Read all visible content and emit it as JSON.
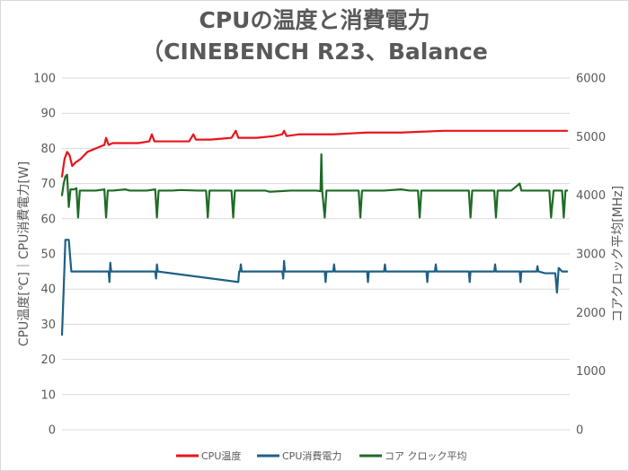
{
  "chart_data": {
    "type": "line",
    "title_lines": [
      "CPUの温度と消費電力",
      "（CINEBENCH R23、Balance"
    ],
    "ylabel_left": "CPU温度[℃]｜CPU消費電力[W]",
    "ylabel_right": "コアクロック平均[MHz]",
    "ylim_left": [
      0,
      100
    ],
    "ylim_right": [
      0,
      6000
    ],
    "yticks_left": [
      "0",
      "10",
      "20",
      "30",
      "40",
      "50",
      "60",
      "70",
      "80",
      "90",
      "100"
    ],
    "yticks_right": [
      "0",
      "1000",
      "2000",
      "3000",
      "4000",
      "5000",
      "6000"
    ],
    "grid": true,
    "legend_position": "bottom",
    "x_samples": 600,
    "series": [
      {
        "name": "CPU温度",
        "color": "#e8141c",
        "axis": "left",
        "points": [
          [
            0,
            72
          ],
          [
            3,
            77
          ],
          [
            6,
            79
          ],
          [
            9,
            78
          ],
          [
            12,
            75
          ],
          [
            16,
            76
          ],
          [
            22,
            77
          ],
          [
            30,
            79
          ],
          [
            40,
            80
          ],
          [
            50,
            81
          ],
          [
            52,
            83
          ],
          [
            55,
            81
          ],
          [
            60,
            81.5
          ],
          [
            70,
            81.5
          ],
          [
            80,
            81.5
          ],
          [
            90,
            81.5
          ],
          [
            103,
            82
          ],
          [
            106,
            84
          ],
          [
            109,
            82
          ],
          [
            115,
            82
          ],
          [
            130,
            82
          ],
          [
            150,
            82
          ],
          [
            155,
            84
          ],
          [
            158,
            82.5
          ],
          [
            175,
            82.5
          ],
          [
            200,
            83
          ],
          [
            205,
            85
          ],
          [
            208,
            83
          ],
          [
            230,
            83
          ],
          [
            250,
            83.5
          ],
          [
            260,
            84
          ],
          [
            262,
            85
          ],
          [
            265,
            83.5
          ],
          [
            280,
            84
          ],
          [
            320,
            84
          ],
          [
            360,
            84.5
          ],
          [
            400,
            84.5
          ],
          [
            450,
            85
          ],
          [
            500,
            85
          ],
          [
            550,
            85
          ],
          [
            590,
            85
          ],
          [
            596,
            85
          ]
        ]
      },
      {
        "name": "CPU消費電力",
        "color": "#1f5f86",
        "axis": "left",
        "points": [
          [
            0,
            27
          ],
          [
            2,
            40
          ],
          [
            4,
            54
          ],
          [
            8,
            54
          ],
          [
            9,
            51
          ],
          [
            11,
            45
          ],
          [
            50,
            45
          ],
          [
            55,
            45
          ],
          [
            56,
            42
          ],
          [
            57,
            47.5
          ],
          [
            58,
            45
          ],
          [
            110,
            45
          ],
          [
            111,
            43
          ],
          [
            112,
            47
          ],
          [
            113,
            45
          ],
          [
            210,
            45
          ],
          [
            211,
            47
          ],
          [
            212,
            45
          ],
          [
            209,
            45
          ],
          [
            208,
            42
          ],
          [
            213,
            45
          ],
          [
            260,
            45
          ],
          [
            261,
            43
          ],
          [
            262,
            48
          ],
          [
            263,
            45
          ],
          [
            310,
            45
          ],
          [
            311,
            42
          ],
          [
            312,
            45
          ],
          [
            320,
            45
          ],
          [
            321,
            47
          ],
          [
            322,
            45
          ],
          [
            360,
            45
          ],
          [
            361,
            42
          ],
          [
            362,
            45
          ],
          [
            380,
            45
          ],
          [
            381,
            47
          ],
          [
            382,
            45
          ],
          [
            430,
            45
          ],
          [
            431,
            42
          ],
          [
            432,
            45
          ],
          [
            440,
            45
          ],
          [
            441,
            47
          ],
          [
            442,
            45
          ],
          [
            480,
            45
          ],
          [
            481,
            42
          ],
          [
            482,
            45
          ],
          [
            510,
            45
          ],
          [
            511,
            47
          ],
          [
            512,
            45
          ],
          [
            540,
            45
          ],
          [
            541,
            42
          ],
          [
            542,
            45
          ],
          [
            560,
            45
          ],
          [
            561,
            46.5
          ],
          [
            562,
            45
          ],
          [
            570,
            44.5
          ],
          [
            582,
            44.5
          ],
          [
            584,
            39
          ],
          [
            586,
            46
          ],
          [
            590,
            45
          ],
          [
            596,
            45
          ]
        ]
      },
      {
        "name": "コア クロック平均",
        "color": "#1e6b26",
        "axis": "right",
        "points": [
          [
            0,
            4000
          ],
          [
            2,
            4200
          ],
          [
            4,
            4320
          ],
          [
            6,
            4350
          ],
          [
            8,
            3800
          ],
          [
            10,
            4100
          ],
          [
            14,
            4100
          ],
          [
            17,
            4120
          ],
          [
            19,
            3620
          ],
          [
            21,
            4080
          ],
          [
            30,
            4080
          ],
          [
            40,
            4080
          ],
          [
            50,
            4100
          ],
          [
            52,
            3620
          ],
          [
            54,
            4080
          ],
          [
            60,
            4080
          ],
          [
            75,
            4100
          ],
          [
            80,
            4080
          ],
          [
            100,
            4080
          ],
          [
            110,
            4100
          ],
          [
            112,
            3620
          ],
          [
            114,
            4080
          ],
          [
            130,
            4080
          ],
          [
            140,
            4090
          ],
          [
            160,
            4080
          ],
          [
            170,
            4080
          ],
          [
            172,
            3620
          ],
          [
            174,
            4080
          ],
          [
            180,
            4080
          ],
          [
            200,
            4080
          ],
          [
            202,
            3620
          ],
          [
            204,
            4080
          ],
          [
            230,
            4080
          ],
          [
            240,
            4080
          ],
          [
            245,
            4060
          ],
          [
            270,
            4080
          ],
          [
            300,
            4080
          ],
          [
            305,
            4070
          ],
          [
            306,
            4700
          ],
          [
            307,
            4080
          ],
          [
            310,
            3620
          ],
          [
            312,
            4080
          ],
          [
            340,
            4080
          ],
          [
            350,
            4080
          ],
          [
            352,
            3620
          ],
          [
            354,
            4080
          ],
          [
            380,
            4080
          ],
          [
            400,
            4100
          ],
          [
            410,
            4080
          ],
          [
            420,
            4080
          ],
          [
            422,
            3620
          ],
          [
            424,
            4080
          ],
          [
            440,
            4080
          ],
          [
            460,
            4080
          ],
          [
            480,
            4080
          ],
          [
            482,
            3620
          ],
          [
            484,
            4080
          ],
          [
            500,
            4080
          ],
          [
            510,
            4080
          ],
          [
            512,
            3620
          ],
          [
            514,
            4080
          ],
          [
            530,
            4080
          ],
          [
            540,
            4200
          ],
          [
            542,
            4080
          ],
          [
            560,
            4080
          ],
          [
            575,
            4080
          ],
          [
            577,
            3620
          ],
          [
            580,
            4080
          ],
          [
            590,
            4080
          ],
          [
            592,
            3620
          ],
          [
            594,
            4080
          ],
          [
            596,
            4080
          ]
        ]
      }
    ]
  }
}
